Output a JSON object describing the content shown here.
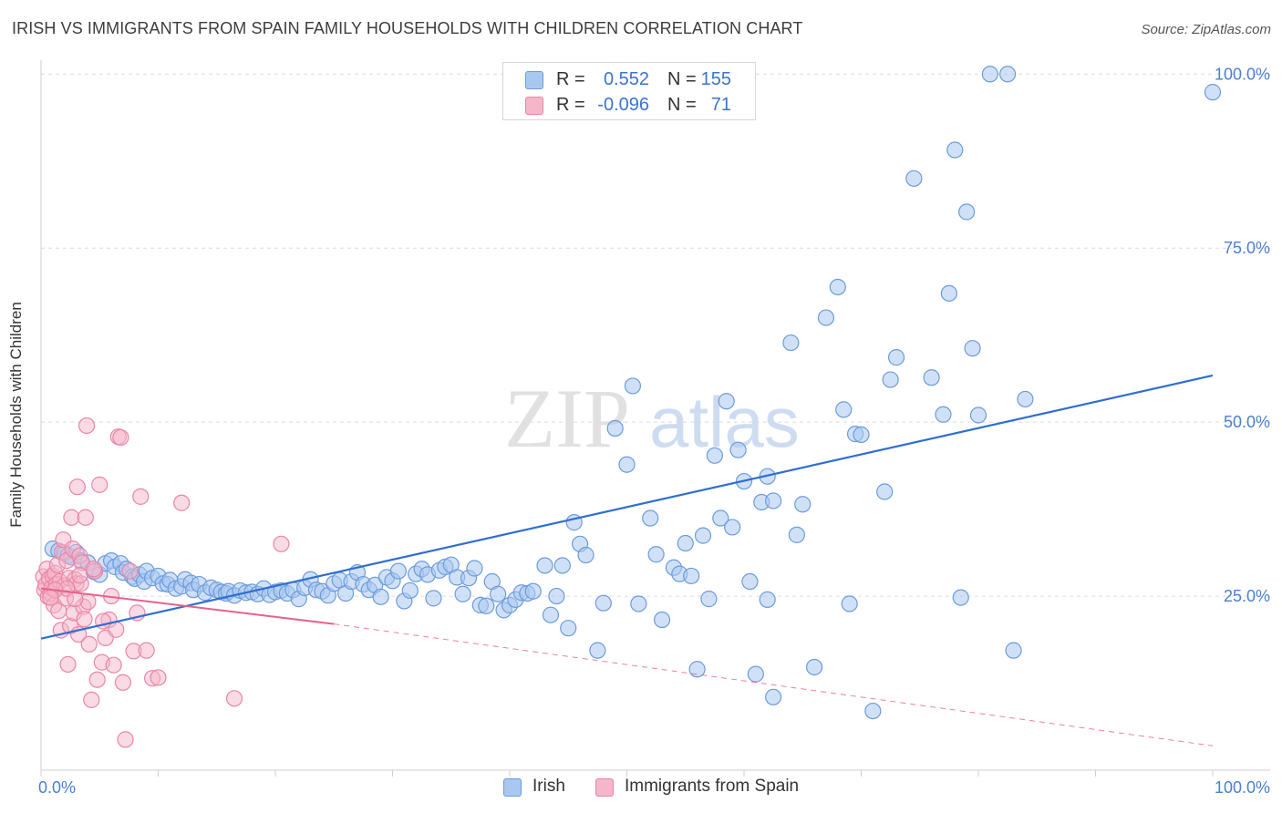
{
  "header": {
    "title": "IRISH VS IMMIGRANTS FROM SPAIN FAMILY HOUSEHOLDS WITH CHILDREN CORRELATION CHART",
    "source": "Source: ZipAtlas.com"
  },
  "watermark": {
    "part1": "ZIP",
    "part2": "atlas"
  },
  "legend": {
    "irish": {
      "r_label": "R =",
      "r_value": "0.552",
      "n_label": "N =",
      "n_value": "155"
    },
    "spain": {
      "r_label": "R =",
      "r_value": "-0.096",
      "n_label": "N =",
      "n_value": "71"
    }
  },
  "bottom_legend": {
    "irish": "Irish",
    "spain": "Immigrants from Spain"
  },
  "colors": {
    "irish_fill": "#a9c8f0",
    "irish_stroke": "#6c9bdc",
    "irish_line": "#2f6ed0",
    "spain_fill": "#f5b6c9",
    "spain_stroke": "#e986a6",
    "spain_line": "#e8608d",
    "tick_label": "#4a7fd4",
    "grid": "#dcdcdc"
  },
  "chart_data": {
    "type": "scatter",
    "title": "IRISH VS IMMIGRANTS FROM SPAIN FAMILY HOUSEHOLDS WITH CHILDREN CORRELATION CHART",
    "xlabel": "",
    "ylabel": "Family Households with Children",
    "xlim": [
      0,
      100
    ],
    "ylim": [
      0,
      102
    ],
    "x_tick_labels": [
      {
        "value": 0,
        "label": "0.0%"
      },
      {
        "value": 100,
        "label": "100.0%"
      }
    ],
    "y_tick_labels": [
      {
        "value": 25,
        "label": "25.0%"
      },
      {
        "value": 50,
        "label": "50.0%"
      },
      {
        "value": 75,
        "label": "75.0%"
      },
      {
        "value": 100,
        "label": "100.0%"
      }
    ],
    "gridlines": [
      25,
      50,
      75,
      100
    ],
    "series": [
      {
        "name": "Irish",
        "trend": {
          "x": [
            0,
            100
          ],
          "y": [
            18.9,
            56.7
          ],
          "style": "solid"
        },
        "points": [
          [
            1,
            31.8
          ],
          [
            1.5,
            31.5
          ],
          [
            2,
            31.2
          ],
          [
            2.3,
            30.8
          ],
          [
            2.6,
            30.6
          ],
          [
            3,
            31.3
          ],
          [
            3.4,
            30.1
          ],
          [
            4,
            29.8
          ],
          [
            4.5,
            28.5
          ],
          [
            5,
            28.1
          ],
          [
            5.5,
            29.7
          ],
          [
            6,
            30.1
          ],
          [
            6.3,
            29.2
          ],
          [
            6.8,
            29.7
          ],
          [
            7,
            28.4
          ],
          [
            7.3,
            28.9
          ],
          [
            7.8,
            27.8
          ],
          [
            8,
            27.5
          ],
          [
            8.4,
            28.1
          ],
          [
            8.8,
            27.1
          ],
          [
            9,
            28.6
          ],
          [
            9.5,
            27.6
          ],
          [
            10,
            27.9
          ],
          [
            10.4,
            26.8
          ],
          [
            10.8,
            26.7
          ],
          [
            11,
            27.3
          ],
          [
            11.5,
            26.1
          ],
          [
            12,
            26.4
          ],
          [
            12.3,
            27.4
          ],
          [
            12.8,
            26.9
          ],
          [
            13,
            25.9
          ],
          [
            13.5,
            26.7
          ],
          [
            14,
            25.5
          ],
          [
            14.5,
            26.2
          ],
          [
            15,
            25.9
          ],
          [
            15.4,
            25.6
          ],
          [
            15.8,
            25.4
          ],
          [
            16,
            25.7
          ],
          [
            16.5,
            25.1
          ],
          [
            17,
            25.8
          ],
          [
            17.5,
            25.5
          ],
          [
            18,
            25.6
          ],
          [
            18.5,
            25.3
          ],
          [
            19,
            26.1
          ],
          [
            19.5,
            25.2
          ],
          [
            20,
            25.6
          ],
          [
            20.5,
            25.8
          ],
          [
            21,
            25.4
          ],
          [
            21.5,
            25.9
          ],
          [
            22,
            24.6
          ],
          [
            22.5,
            26.2
          ],
          [
            23,
            27.4
          ],
          [
            23.5,
            25.9
          ],
          [
            24,
            25.7
          ],
          [
            24.5,
            25.1
          ],
          [
            25,
            26.8
          ],
          [
            25.5,
            27.3
          ],
          [
            26,
            25.4
          ],
          [
            26.5,
            27.1
          ],
          [
            27,
            28.4
          ],
          [
            27.5,
            26.7
          ],
          [
            28,
            25.9
          ],
          [
            28.5,
            26.6
          ],
          [
            29,
            24.9
          ],
          [
            29.5,
            27.7
          ],
          [
            30,
            27.2
          ],
          [
            30.5,
            28.6
          ],
          [
            31,
            24.3
          ],
          [
            31.5,
            25.8
          ],
          [
            32,
            28.2
          ],
          [
            32.5,
            28.9
          ],
          [
            33,
            28.1
          ],
          [
            33.5,
            24.7
          ],
          [
            34,
            28.7
          ],
          [
            34.5,
            29.2
          ],
          [
            35,
            29.5
          ],
          [
            35.5,
            27.7
          ],
          [
            36,
            25.3
          ],
          [
            36.5,
            27.6
          ],
          [
            37,
            29
          ],
          [
            37.5,
            23.7
          ],
          [
            38,
            23.6
          ],
          [
            38.5,
            27.1
          ],
          [
            39,
            25.3
          ],
          [
            39.5,
            23
          ],
          [
            40,
            23.7
          ],
          [
            40.5,
            24.5
          ],
          [
            41,
            25.5
          ],
          [
            41.5,
            25.4
          ],
          [
            42,
            25.7
          ],
          [
            43,
            29.4
          ],
          [
            43.5,
            22.3
          ],
          [
            44,
            25
          ],
          [
            44.5,
            29.4
          ],
          [
            45,
            20.4
          ],
          [
            45.5,
            35.6
          ],
          [
            46,
            32.5
          ],
          [
            46.5,
            30.9
          ],
          [
            47.5,
            17.2
          ],
          [
            48,
            24
          ],
          [
            49,
            49.1
          ],
          [
            50,
            43.9
          ],
          [
            50.5,
            55.2
          ],
          [
            51,
            23.9
          ],
          [
            52,
            36.2
          ],
          [
            52.5,
            31
          ],
          [
            53,
            21.6
          ],
          [
            54,
            29.1
          ],
          [
            54.5,
            28.2
          ],
          [
            55,
            32.6
          ],
          [
            55.5,
            27.9
          ],
          [
            56,
            14.5
          ],
          [
            56.5,
            33.7
          ],
          [
            57,
            24.6
          ],
          [
            57.5,
            45.2
          ],
          [
            58,
            36.2
          ],
          [
            58.5,
            53
          ],
          [
            59,
            34.9
          ],
          [
            59.5,
            46
          ],
          [
            60,
            41.5
          ],
          [
            60.5,
            27.1
          ],
          [
            61,
            13.8
          ],
          [
            61.5,
            38.5
          ],
          [
            62,
            42.2
          ],
          [
            62.5,
            38.7
          ],
          [
            62,
            24.5
          ],
          [
            62.5,
            10.5
          ],
          [
            64,
            61.4
          ],
          [
            64.5,
            33.8
          ],
          [
            65,
            38.2
          ],
          [
            66,
            14.8
          ],
          [
            67,
            65
          ],
          [
            68,
            69.4
          ],
          [
            68.5,
            51.8
          ],
          [
            69,
            23.9
          ],
          [
            69.5,
            48.3
          ],
          [
            70,
            48.2
          ],
          [
            71,
            8.5
          ],
          [
            72,
            40
          ],
          [
            72.5,
            56.1
          ],
          [
            73,
            59.3
          ],
          [
            74.5,
            85
          ],
          [
            76,
            56.4
          ],
          [
            77,
            51.1
          ],
          [
            77.5,
            68.5
          ],
          [
            78,
            89.1
          ],
          [
            78.5,
            24.8
          ],
          [
            79,
            80.2
          ],
          [
            79.5,
            60.6
          ],
          [
            80,
            51
          ],
          [
            81,
            100
          ],
          [
            82.5,
            100
          ],
          [
            83,
            17.2
          ],
          [
            84,
            53.3
          ],
          [
            100,
            97.4
          ]
        ]
      },
      {
        "name": "Immigrants from Spain",
        "trend": {
          "x": [
            0,
            25
          ],
          "y": [
            26.1,
            21.0
          ],
          "style": "solid",
          "extension": {
            "x": [
              25,
              100
            ],
            "y": [
              21.0,
              3.5
            ],
            "style": "dashed"
          }
        },
        "points": [
          [
            0.2,
            27.8
          ],
          [
            0.3,
            25.9
          ],
          [
            0.4,
            26.6
          ],
          [
            0.5,
            28.9
          ],
          [
            0.6,
            24.9
          ],
          [
            0.7,
            27.5
          ],
          [
            0.8,
            25.4
          ],
          [
            0.9,
            26.2
          ],
          [
            1,
            27.9
          ],
          [
            1.1,
            23.7
          ],
          [
            1.2,
            28.3
          ],
          [
            1.3,
            26.7
          ],
          [
            1.4,
            29.5
          ],
          [
            1.5,
            22.9
          ],
          [
            1.6,
            27.1
          ],
          [
            1.7,
            20.1
          ],
          [
            1.8,
            31.3
          ],
          [
            1.9,
            33.1
          ],
          [
            2,
            26.5
          ],
          [
            2.1,
            24.7
          ],
          [
            2.2,
            30.1
          ],
          [
            2.3,
            15.2
          ],
          [
            2.4,
            27.6
          ],
          [
            2.5,
            20.7
          ],
          [
            2.6,
            36.3
          ],
          [
            2.7,
            31.8
          ],
          [
            2.8,
            22.6
          ],
          [
            2.9,
            27.4
          ],
          [
            3,
            26.8
          ],
          [
            3.1,
            40.7
          ],
          [
            3.2,
            19.5
          ],
          [
            3.3,
            30.8
          ],
          [
            3.4,
            26.8
          ],
          [
            3.5,
            29.8
          ],
          [
            3.6,
            23.5
          ],
          [
            3.7,
            21.7
          ],
          [
            3.8,
            36.3
          ],
          [
            3.9,
            49.5
          ],
          [
            4,
            24.2
          ],
          [
            4.1,
            18.1
          ],
          [
            4.3,
            10.1
          ],
          [
            4.6,
            28.6
          ],
          [
            4.8,
            13
          ],
          [
            5,
            41
          ],
          [
            5.2,
            15.5
          ],
          [
            5.5,
            19
          ],
          [
            5.8,
            21.6
          ],
          [
            6,
            25
          ],
          [
            6.2,
            15.1
          ],
          [
            6.4,
            20.2
          ],
          [
            6.6,
            47.9
          ],
          [
            6.8,
            47.8
          ],
          [
            7,
            12.6
          ],
          [
            7.2,
            4.4
          ],
          [
            7.6,
            28.6
          ],
          [
            7.9,
            17.1
          ],
          [
            8.2,
            22.6
          ],
          [
            8.5,
            39.3
          ],
          [
            9,
            17.2
          ],
          [
            9.5,
            13.2
          ],
          [
            10,
            13.3
          ],
          [
            12,
            38.4
          ],
          [
            16.5,
            10.3
          ],
          [
            20.5,
            32.5
          ],
          [
            2.2,
            26.1
          ],
          [
            1.2,
            25.9
          ],
          [
            0.8,
            24.8
          ],
          [
            3.3,
            28
          ],
          [
            5.3,
            21.4
          ],
          [
            4.5,
            28.9
          ],
          [
            2.9,
            24.6
          ]
        ]
      }
    ]
  }
}
